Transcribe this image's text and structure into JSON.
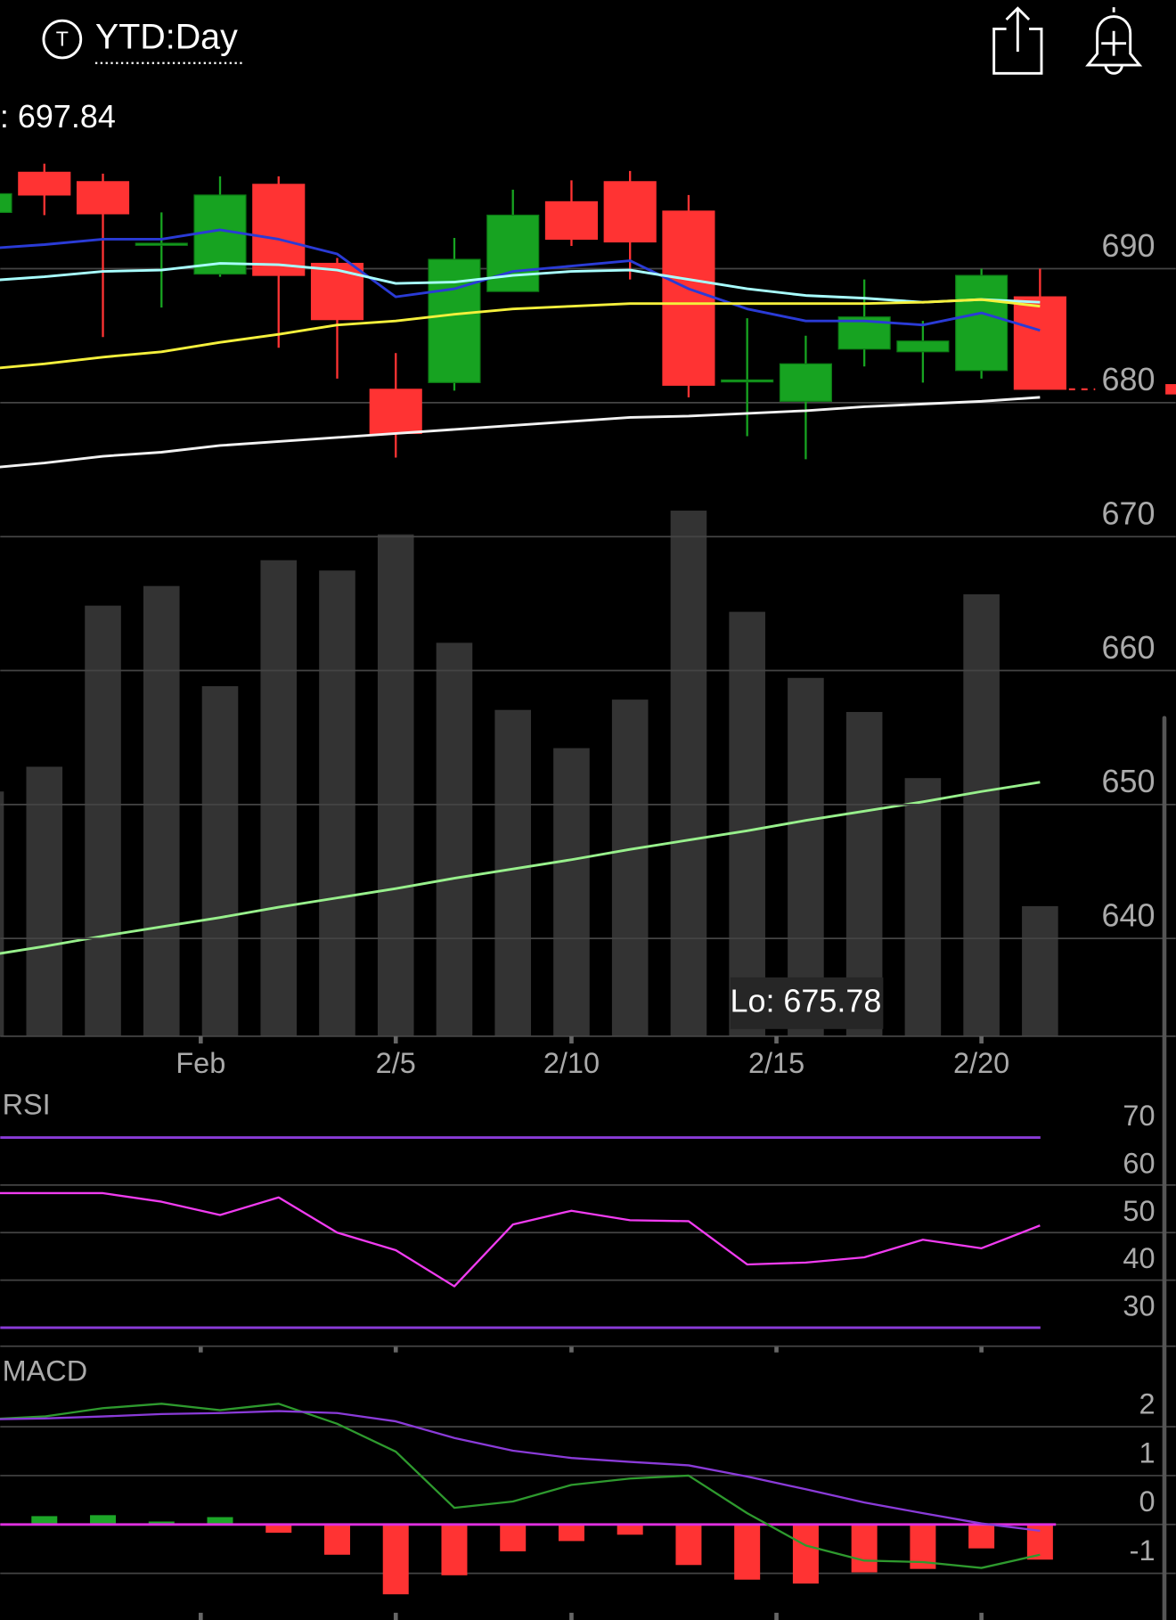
{
  "header": {
    "title": "YTD:Day"
  },
  "chart_data": [
    {
      "type": "candlestick",
      "open": [
        694.2,
        697.2,
        696.5,
        691.9,
        689.6,
        696.3,
        690.4,
        681.0,
        681.5,
        688.3,
        695.0,
        696.5,
        694.3,
        681.7,
        680.1,
        684.0,
        683.8,
        682.4,
        687.9
      ],
      "high": [
        696.0,
        697.84,
        697.1,
        694.2,
        696.9,
        696.9,
        690.8,
        683.7,
        692.3,
        695.9,
        696.6,
        697.3,
        695.5,
        686.3,
        685.0,
        689.2,
        686.1,
        690.0,
        690.0
      ],
      "low": [
        694.0,
        694.0,
        684.9,
        687.1,
        689.4,
        684.1,
        681.8,
        675.9,
        680.9,
        688.3,
        691.7,
        689.2,
        680.4,
        677.5,
        675.78,
        682.7,
        681.5,
        681.8,
        681.0
      ],
      "close": [
        695.6,
        695.5,
        694.1,
        691.9,
        695.5,
        689.5,
        686.2,
        677.7,
        690.7,
        694.0,
        692.2,
        692.0,
        681.3,
        681.7,
        682.9,
        686.4,
        684.6,
        689.5,
        681.0
      ],
      "up_color": "#17a321",
      "down_color": "#ff3333",
      "ylim": [
        632.7,
        699
      ],
      "yticks": [
        640,
        650,
        660,
        670,
        680,
        690
      ],
      "grid": true,
      "xticks": [
        {
          "value": 3.67,
          "label": "Feb"
        },
        {
          "value": 7,
          "label": "2/5"
        },
        {
          "value": 10,
          "label": "2/10"
        },
        {
          "value": 13.5,
          "label": "2/15"
        },
        {
          "value": 17,
          "label": "2/20"
        }
      ],
      "high_label": ": 697.84",
      "low_label": "Lo: 675.78",
      "ma_series": [
        {
          "color": "#2a3bd6",
          "values": [
            691.5,
            691.8,
            692.2,
            692.2,
            692.9,
            692.2,
            691.1,
            687.9,
            688.5,
            689.8,
            690.2,
            690.6,
            688.5,
            687.0,
            686.1,
            686.1,
            685.8,
            686.7,
            685.4
          ]
        },
        {
          "color": "#a8ffff",
          "values": [
            689.1,
            689.4,
            689.8,
            689.9,
            690.4,
            690.3,
            689.9,
            688.9,
            689.0,
            689.5,
            689.8,
            689.9,
            689.2,
            688.5,
            688.0,
            687.8,
            687.5,
            687.7,
            687.5
          ]
        },
        {
          "color": "#f5f03c",
          "values": [
            682.5,
            682.9,
            683.4,
            683.8,
            684.5,
            685.1,
            685.8,
            686.1,
            686.6,
            687.0,
            687.2,
            687.4,
            687.4,
            687.4,
            687.4,
            687.4,
            687.5,
            687.7,
            687.2
          ]
        },
        {
          "color": "#f2f2f2",
          "values": [
            675.1,
            675.5,
            676.0,
            676.3,
            676.8,
            677.1,
            677.4,
            677.7,
            678.0,
            678.3,
            678.6,
            678.9,
            679.0,
            679.2,
            679.4,
            679.7,
            679.9,
            680.1,
            680.4
          ]
        }
      ],
      "volume": {
        "color": "#333333",
        "ylim": [
          0,
          860
        ],
        "values": [
          237,
          261,
          417,
          436,
          339,
          461,
          451,
          486,
          381,
          316,
          279,
          326,
          509,
          411,
          347,
          314,
          250,
          428,
          126
        ],
        "ma": {
          "color": "#98f08c",
          "values": [
            78,
            87,
            97,
            106,
            115,
            125,
            134,
            143,
            153,
            162,
            171,
            181,
            190,
            199,
            209,
            218,
            227,
            237,
            246
          ]
        }
      }
    },
    {
      "type": "line",
      "title": "RSI",
      "color": "#f03cf0",
      "values": [
        58.3,
        58.3,
        58.3,
        56.5,
        53.7,
        57.4,
        50.0,
        46.3,
        38.7,
        51.7,
        54.6,
        52.6,
        52.4,
        43.3,
        43.7,
        44.8,
        48.5,
        46.7,
        51.5
      ],
      "ylim": [
        26.1,
        80
      ],
      "yticks": [
        30,
        40,
        50,
        60,
        70
      ],
      "bands": [
        30,
        70
      ],
      "band_color": "#8a3bd8"
    },
    {
      "type": "macd",
      "title": "MACD",
      "macd": {
        "color": "#2e9a2e",
        "values": [
          2.15,
          2.21,
          2.38,
          2.47,
          2.34,
          2.47,
          2.06,
          1.49,
          0.34,
          0.47,
          0.81,
          0.94,
          1.0,
          0.23,
          -0.43,
          -0.74,
          -0.77,
          -0.89,
          -0.62
        ]
      },
      "signal": {
        "color": "#8a3bd8",
        "values": [
          2.15,
          2.17,
          2.21,
          2.26,
          2.28,
          2.32,
          2.28,
          2.11,
          1.77,
          1.51,
          1.36,
          1.28,
          1.21,
          0.98,
          0.72,
          0.45,
          0.23,
          0.02,
          -0.13
        ]
      },
      "histogram": {
        "up_color": "#1da628",
        "down_color": "#ff3333",
        "values": [
          null,
          0.17,
          0.19,
          0.06,
          0.15,
          -0.17,
          -0.62,
          -1.43,
          -1.04,
          -0.55,
          -0.34,
          -0.21,
          -0.83,
          -1.13,
          -1.21,
          -0.98,
          -0.91,
          -0.49,
          -0.72
        ]
      },
      "zero_color": "#e030e0",
      "ylim": [
        -1.85,
        3.5
      ],
      "yticks": [
        -1,
        0,
        1,
        2
      ]
    }
  ]
}
